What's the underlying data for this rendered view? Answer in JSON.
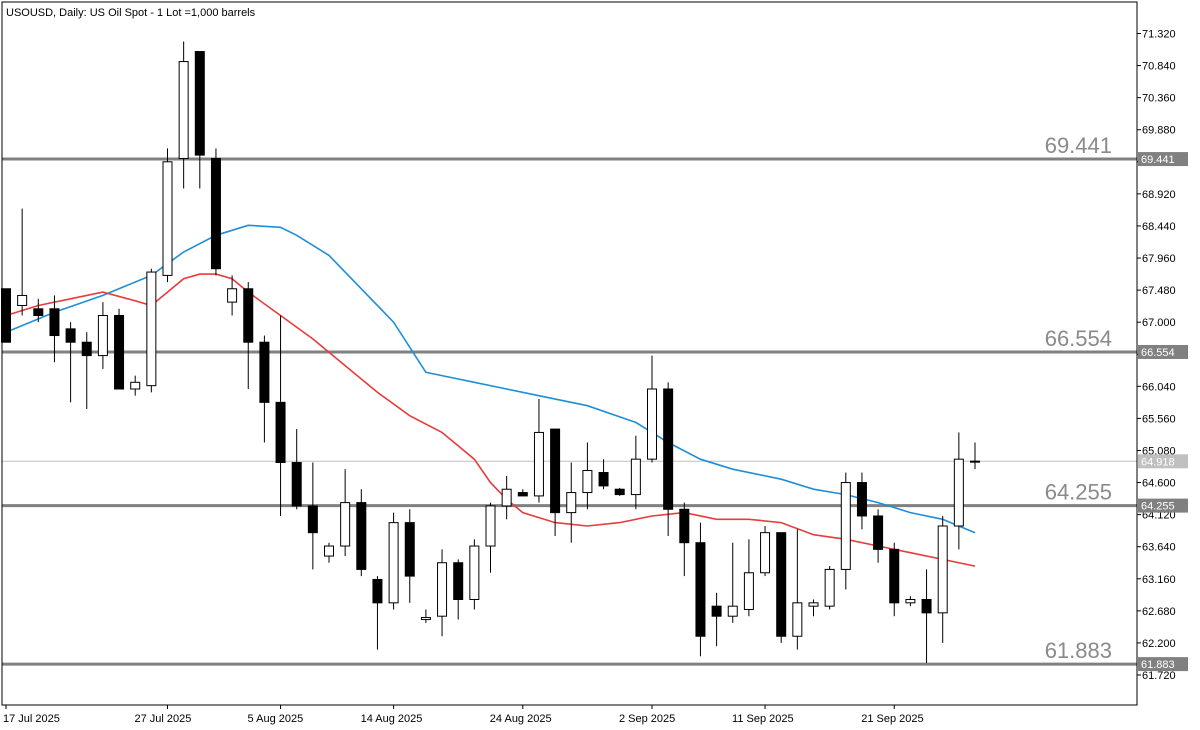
{
  "chart_title": "USOUSD, Daily:  US Oil Spot - 1 Lot =1,000 barrels",
  "chart_data": {
    "type": "candlestick",
    "symbol": "USOUSD",
    "timeframe": "Daily",
    "description": "US Oil Spot - 1 Lot =1,000 barrels",
    "ylim": [
      61.5,
      71.6
    ],
    "y_ticks": [
      "71.320",
      "70.840",
      "70.360",
      "69.880",
      "69.400",
      "68.920",
      "68.440",
      "67.960",
      "67.480",
      "67.000",
      "66.520",
      "66.040",
      "65.560",
      "65.080",
      "64.600",
      "64.120",
      "63.640",
      "63.160",
      "62.680",
      "62.200",
      "61.720"
    ],
    "x_ticks": [
      {
        "index": 0,
        "label": "17 Jul 2025"
      },
      {
        "index": 10,
        "label": "27 Jul 2025"
      },
      {
        "index": 17,
        "label": "5 Aug 2025"
      },
      {
        "index": 24,
        "label": "14 Aug 2025"
      },
      {
        "index": 32,
        "label": "24 Aug 2025"
      },
      {
        "index": 40,
        "label": "2 Sep 2025"
      },
      {
        "index": 47,
        "label": "11 Sep 2025"
      },
      {
        "index": 55,
        "label": "21 Sep 2025"
      }
    ],
    "current_price": "64.918",
    "current_price_value": 64.918,
    "levels": [
      {
        "value": 69.441,
        "label": "69.441"
      },
      {
        "value": 66.554,
        "label": "66.554"
      },
      {
        "value": 64.255,
        "label": "64.255"
      },
      {
        "value": 61.883,
        "label": "61.883"
      }
    ],
    "candles": [
      [
        67.5,
        67.5,
        66.7,
        66.7
      ],
      [
        67.25,
        68.7,
        67.1,
        67.4
      ],
      [
        67.2,
        67.35,
        67.0,
        67.1
      ],
      [
        67.2,
        67.4,
        66.4,
        66.8
      ],
      [
        66.9,
        67.0,
        65.8,
        66.7
      ],
      [
        66.7,
        66.85,
        65.7,
        66.5
      ],
      [
        66.5,
        67.3,
        66.3,
        67.1
      ],
      [
        67.1,
        67.2,
        66.0,
        66.0
      ],
      [
        66.0,
        66.2,
        65.9,
        66.1
      ],
      [
        66.05,
        67.8,
        65.95,
        67.75
      ],
      [
        67.7,
        69.6,
        67.6,
        69.4
      ],
      [
        69.45,
        71.2,
        69.0,
        70.9
      ],
      [
        71.05,
        71.05,
        69.0,
        69.5
      ],
      [
        69.45,
        69.6,
        67.7,
        67.8
      ],
      [
        67.3,
        67.7,
        67.1,
        67.5
      ],
      [
        67.5,
        67.6,
        66.0,
        66.7
      ],
      [
        66.7,
        66.8,
        65.2,
        65.8
      ],
      [
        65.8,
        67.1,
        64.1,
        64.9
      ],
      [
        64.9,
        65.4,
        64.2,
        64.25
      ],
      [
        64.25,
        64.9,
        63.3,
        63.85
      ],
      [
        63.5,
        63.7,
        63.4,
        63.65
      ],
      [
        63.65,
        64.8,
        63.5,
        64.3
      ],
      [
        64.3,
        64.5,
        63.2,
        63.3
      ],
      [
        63.15,
        63.2,
        62.1,
        62.8
      ],
      [
        62.8,
        64.15,
        62.7,
        64.0
      ],
      [
        64.0,
        64.2,
        62.8,
        63.2
      ],
      [
        62.55,
        62.7,
        62.5,
        62.58
      ],
      [
        62.6,
        63.6,
        62.3,
        63.4
      ],
      [
        63.4,
        63.45,
        62.55,
        62.85
      ],
      [
        62.85,
        63.75,
        62.7,
        63.65
      ],
      [
        63.65,
        64.3,
        63.25,
        64.25
      ],
      [
        64.25,
        64.7,
        64.05,
        64.5
      ],
      [
        64.45,
        64.5,
        64.4,
        64.4
      ],
      [
        64.4,
        65.85,
        64.3,
        65.35
      ],
      [
        65.4,
        65.4,
        63.8,
        64.15
      ],
      [
        64.15,
        64.9,
        63.7,
        64.45
      ],
      [
        64.45,
        65.2,
        64.2,
        64.78
      ],
      [
        64.75,
        64.95,
        64.5,
        64.55
      ],
      [
        64.5,
        64.52,
        64.4,
        64.42
      ],
      [
        64.42,
        65.3,
        64.2,
        64.95
      ],
      [
        64.95,
        66.5,
        64.9,
        66.0
      ],
      [
        66.0,
        66.1,
        63.8,
        64.2
      ],
      [
        64.2,
        64.3,
        63.2,
        63.7
      ],
      [
        63.7,
        64.0,
        62.0,
        62.3
      ],
      [
        62.75,
        62.95,
        62.15,
        62.6
      ],
      [
        62.6,
        63.7,
        62.5,
        62.75
      ],
      [
        62.7,
        63.75,
        62.6,
        63.25
      ],
      [
        63.25,
        63.95,
        63.2,
        63.85
      ],
      [
        63.85,
        63.85,
        62.2,
        62.3
      ],
      [
        62.3,
        63.9,
        62.1,
        62.8
      ],
      [
        62.75,
        62.85,
        62.6,
        62.8
      ],
      [
        62.75,
        63.35,
        62.7,
        63.3
      ],
      [
        63.3,
        64.75,
        63.0,
        64.6
      ],
      [
        64.6,
        64.75,
        63.9,
        64.1
      ],
      [
        64.1,
        64.2,
        63.4,
        63.6
      ],
      [
        63.6,
        63.7,
        62.6,
        62.8
      ],
      [
        62.8,
        62.9,
        62.75,
        62.85
      ],
      [
        62.85,
        63.3,
        61.9,
        62.65
      ],
      [
        62.65,
        64.1,
        62.2,
        63.95
      ],
      [
        63.95,
        65.35,
        63.6,
        64.95
      ],
      [
        64.92,
        65.2,
        64.8,
        64.918
      ]
    ],
    "ma_fast": [
      [
        0,
        67.1
      ],
      [
        2,
        67.25
      ],
      [
        4,
        67.35
      ],
      [
        6,
        67.45
      ],
      [
        8,
        67.32
      ],
      [
        9,
        67.25
      ],
      [
        10,
        67.45
      ],
      [
        11,
        67.65
      ],
      [
        12,
        67.72
      ],
      [
        13,
        67.72
      ],
      [
        14,
        67.65
      ],
      [
        15,
        67.45
      ],
      [
        17,
        67.1
      ],
      [
        19,
        66.75
      ],
      [
        21,
        66.35
      ],
      [
        23,
        65.95
      ],
      [
        25,
        65.6
      ],
      [
        27,
        65.35
      ],
      [
        29,
        64.95
      ],
      [
        30,
        64.6
      ],
      [
        31,
        64.35
      ],
      [
        32,
        64.15
      ],
      [
        34,
        64.0
      ],
      [
        36,
        63.95
      ],
      [
        38,
        64.0
      ],
      [
        40,
        64.1
      ],
      [
        42,
        64.15
      ],
      [
        44,
        64.05
      ],
      [
        46,
        64.05
      ],
      [
        48,
        64.0
      ],
      [
        50,
        63.82
      ],
      [
        52,
        63.75
      ],
      [
        54,
        63.65
      ],
      [
        56,
        63.55
      ],
      [
        58,
        63.45
      ],
      [
        60,
        63.35
      ]
    ],
    "ma_slow": [
      [
        0,
        66.85
      ],
      [
        3,
        67.15
      ],
      [
        6,
        67.4
      ],
      [
        9,
        67.7
      ],
      [
        11,
        68.05
      ],
      [
        13,
        68.3
      ],
      [
        15,
        68.45
      ],
      [
        17,
        68.42
      ],
      [
        18,
        68.3
      ],
      [
        20,
        68.0
      ],
      [
        22,
        67.5
      ],
      [
        24,
        67.0
      ],
      [
        26,
        66.25
      ],
      [
        27,
        66.2
      ],
      [
        29,
        66.1
      ],
      [
        31,
        66.0
      ],
      [
        33,
        65.9
      ],
      [
        36,
        65.75
      ],
      [
        39,
        65.5
      ],
      [
        41,
        65.2
      ],
      [
        43,
        64.95
      ],
      [
        45,
        64.8
      ],
      [
        48,
        64.65
      ],
      [
        50,
        64.5
      ],
      [
        52,
        64.42
      ],
      [
        54,
        64.3
      ],
      [
        56,
        64.15
      ],
      [
        58,
        64.05
      ],
      [
        59,
        63.95
      ],
      [
        60,
        63.85
      ]
    ],
    "grid": false
  },
  "colors": {
    "bull_fill": "#ffffff",
    "bear_fill": "#000000",
    "candle_outline": "#000000",
    "ma_fast": "#e83b3b",
    "ma_slow": "#1e8fd6",
    "level_line": "#808080",
    "level_label": "#8a8a8a",
    "tag_background": "#808080",
    "current_price_line": "#c0c0c0",
    "current_price_tag": "#c0c0c0"
  }
}
